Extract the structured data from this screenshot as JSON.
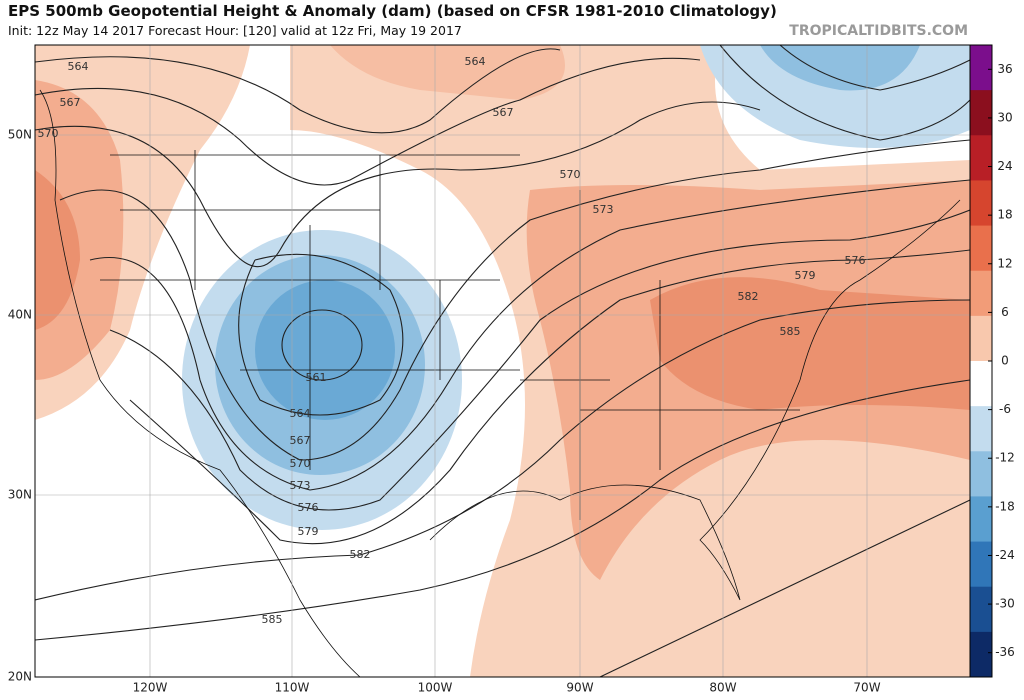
{
  "header": {
    "title": "EPS 500mb Geopotential Height & Anomaly (dam) (based on CFSR 1981-2010 Climatology)",
    "subtitle": "Init: 12z May 14 2017   Forecast Hour: [120]   valid at 12z Fri, May 19 2017",
    "watermark": "TROPICALTIDBITS.COM"
  },
  "map": {
    "lat_labels": [
      "50N",
      "40N",
      "30N",
      "20N"
    ],
    "lon_labels": [
      "120W",
      "110W",
      "100W",
      "90W",
      "80W",
      "70W"
    ],
    "contour_labels": [
      564,
      564,
      567,
      567,
      570,
      570,
      573,
      576,
      579,
      582,
      582,
      585,
      585,
      561,
      564,
      567,
      570,
      573,
      576,
      579
    ]
  },
  "colorbar": {
    "ylim": [
      -39,
      39
    ],
    "ticks": [
      36,
      30,
      24,
      18,
      12,
      6,
      0,
      -6,
      -12,
      -18,
      -24,
      -30,
      -36
    ],
    "colors": [
      "#7b0e8c",
      "#8b0f1e",
      "#b81f26",
      "#d6452e",
      "#e9704c",
      "#f29c78",
      "#f8c8ad",
      "#ffffff",
      "#c3dcee",
      "#8fbfe0",
      "#5a9fd0",
      "#3076b8",
      "#1a4f92",
      "#0d2a66"
    ]
  }
}
